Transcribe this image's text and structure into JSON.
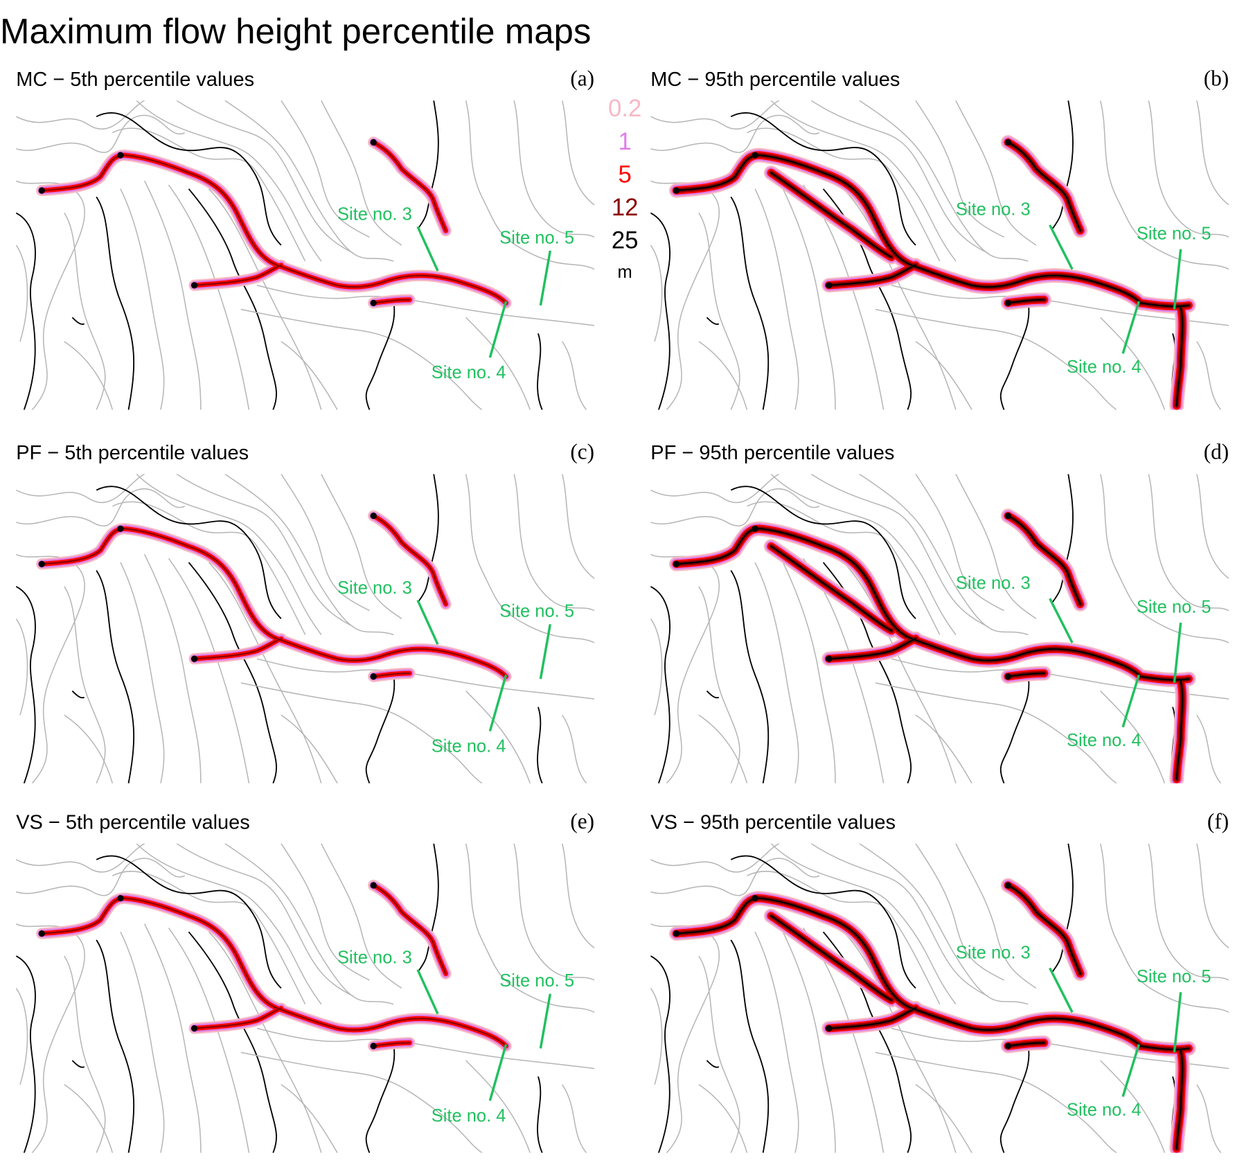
{
  "title": "Maximum flow height percentile maps",
  "legend": {
    "items": [
      {
        "value": 0.2,
        "color": "#f7b8c4"
      },
      {
        "value": 1,
        "color": "#e07ee6"
      },
      {
        "value": 5,
        "color": "#ff0000"
      },
      {
        "value": 12,
        "color": "#8b0000"
      },
      {
        "value": 25,
        "color": "#000000"
      }
    ],
    "unit": "m"
  },
  "panels": [
    {
      "title": "MC − 5th percentile values",
      "letter": "(a)",
      "sites": [
        "Site no. 3",
        "Site no. 5",
        "Site no. 4"
      ]
    },
    {
      "title": "MC − 95th percentile values",
      "letter": "(b)",
      "sites": [
        "Site no. 3",
        "Site no. 5",
        "Site no. 4"
      ]
    },
    {
      "title": "PF − 5th percentile values",
      "letter": "(c)",
      "sites": [
        "Site no. 3",
        "Site no. 5",
        "Site no. 4"
      ]
    },
    {
      "title": "PF − 95th percentile values",
      "letter": "(d)",
      "sites": [
        "Site no. 3",
        "Site no. 5",
        "Site no. 4"
      ]
    },
    {
      "title": "VS − 5th percentile values",
      "letter": "(e)",
      "sites": [
        "Site no. 3",
        "Site no. 5",
        "Site no. 4"
      ]
    },
    {
      "title": "VS − 95th percentile values",
      "letter": "(f)",
      "sites": [
        "Site no. 3",
        "Site no. 5",
        "Site no. 4"
      ]
    }
  ]
}
